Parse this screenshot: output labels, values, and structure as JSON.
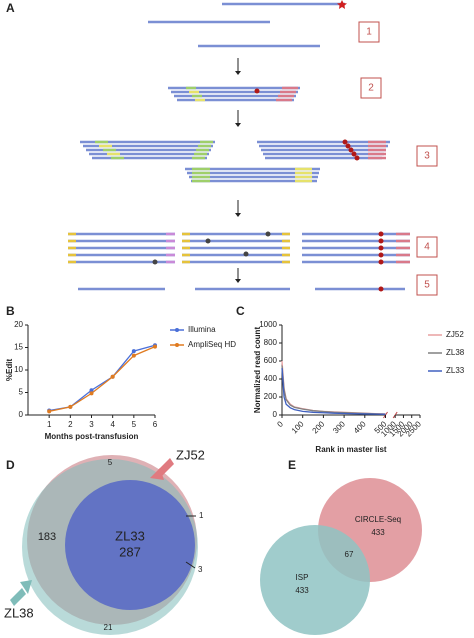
{
  "panel_a": {
    "label": "A",
    "steps": [
      "1",
      "2",
      "3",
      "4",
      "5"
    ]
  },
  "chart_data": [
    {
      "type": "line",
      "panel_label": "B",
      "y_label": "%Edit",
      "x_label": "Months post-transfusion",
      "x": [
        1,
        2,
        3,
        4,
        5,
        6
      ],
      "xlim": [
        0,
        6
      ],
      "xticks": [
        1,
        2,
        3,
        4,
        5,
        6
      ],
      "ylim": [
        0,
        20
      ],
      "yticks": [
        0,
        5,
        10,
        15,
        20
      ],
      "markers": true,
      "series": [
        {
          "name": "Illumina",
          "color": "#4a6fd8",
          "values": [
            1.0,
            1.8,
            5.5,
            8.5,
            14.2,
            15.5
          ]
        },
        {
          "name": "AmpliSeq HD",
          "color": "#e07b20",
          "values": [
            0.8,
            1.8,
            4.8,
            8.5,
            13.2,
            15.2
          ]
        }
      ]
    },
    {
      "type": "line",
      "panel_label": "C",
      "y_label": "Normalized read count",
      "x_label": "Rank in master list",
      "x": [
        0,
        10,
        20,
        40,
        60,
        80,
        100,
        150,
        200,
        250,
        300,
        350,
        400,
        450,
        500
      ],
      "xlim": [
        0,
        2500
      ],
      "xticks": [
        0,
        100,
        200,
        300,
        400,
        500,
        1000,
        1500,
        2000,
        2500
      ],
      "ylim": [
        0,
        1000
      ],
      "yticks": [
        0,
        200,
        400,
        600,
        800,
        1000
      ],
      "markers": false,
      "series": [
        {
          "name": "ZJ52",
          "color": "#e8a0a0",
          "values": [
            600,
            300,
            180,
            120,
            90,
            80,
            70,
            50,
            40,
            35,
            30,
            25,
            20,
            15,
            12
          ]
        },
        {
          "name": "ZL38",
          "color": "#808080",
          "values": [
            550,
            280,
            170,
            110,
            85,
            75,
            65,
            48,
            38,
            30,
            26,
            22,
            18,
            14,
            10
          ]
        },
        {
          "name": "ZL33",
          "color": "#4060c0",
          "values": [
            520,
            200,
            120,
            80,
            60,
            50,
            40,
            30,
            25,
            20,
            17,
            14,
            12,
            10,
            8
          ]
        }
      ]
    }
  ],
  "panel_d": {
    "label": "D",
    "sets": [
      "ZJ52",
      "ZL38",
      "ZL33"
    ],
    "core": 287,
    "zj52_zl38": 183,
    "zj52_only": 5,
    "right_top": 1,
    "right_bottom": 3,
    "zl38_only": 21
  },
  "panel_e": {
    "label": "E",
    "sets": [
      "CIRCLE-Seq",
      "ISP"
    ],
    "circle_seq": 433,
    "isp": 433,
    "overlap": 67
  }
}
